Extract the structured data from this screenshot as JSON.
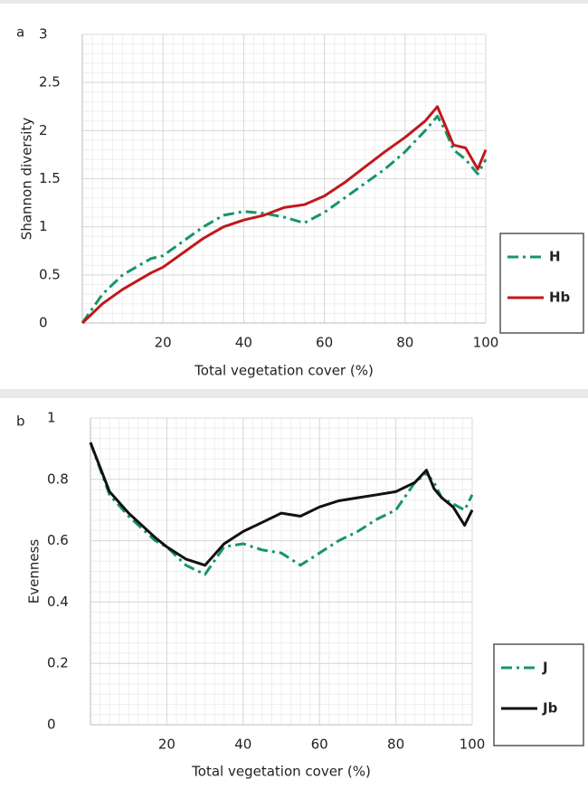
{
  "chart_data": [
    {
      "type": "line",
      "panel": "a",
      "x_label": "Total vegetation cover (%)",
      "y_label": "Shannon diversity",
      "x": [
        0,
        5,
        10,
        17,
        20,
        25,
        30,
        35,
        40,
        45,
        50,
        55,
        60,
        65,
        70,
        75,
        80,
        85,
        88,
        90,
        92,
        95,
        98,
        100
      ],
      "series": [
        {
          "name": "H",
          "color": "#17956a",
          "style": "dash-dot",
          "values": [
            0,
            0.3,
            0.5,
            0.67,
            0.7,
            0.85,
            1.0,
            1.12,
            1.16,
            1.14,
            1.1,
            1.04,
            1.15,
            1.3,
            1.45,
            1.6,
            1.78,
            2.0,
            2.15,
            2.0,
            1.8,
            1.7,
            1.55,
            1.7
          ]
        },
        {
          "name": "Hb",
          "color": "#c0191c",
          "style": "solid",
          "values": [
            0,
            0.2,
            0.35,
            0.52,
            0.58,
            0.73,
            0.88,
            1.0,
            1.07,
            1.12,
            1.2,
            1.23,
            1.32,
            1.46,
            1.62,
            1.78,
            1.93,
            2.1,
            2.25,
            2.05,
            1.85,
            1.82,
            1.6,
            1.8
          ]
        }
      ],
      "xlim": [
        0,
        100
      ],
      "xticks": [
        20,
        40,
        60,
        80,
        100
      ],
      "ylim": [
        0,
        3
      ],
      "yticks": [
        0,
        0.5,
        1,
        1.5,
        2,
        2.5,
        3
      ],
      "grid": true,
      "legend": "right"
    },
    {
      "type": "line",
      "panel": "b",
      "x_label": "Total vegetation cover (%)",
      "y_label": "Evenness",
      "x": [
        0,
        5,
        10,
        17,
        20,
        25,
        30,
        35,
        40,
        45,
        50,
        55,
        60,
        65,
        70,
        75,
        80,
        85,
        88,
        90,
        92,
        95,
        98,
        100
      ],
      "series": [
        {
          "name": "J",
          "color": "#17956a",
          "style": "dash-dot",
          "values": [
            0.92,
            0.75,
            0.68,
            0.6,
            0.58,
            0.52,
            0.49,
            0.58,
            0.59,
            0.57,
            0.56,
            0.52,
            0.56,
            0.6,
            0.63,
            0.67,
            0.7,
            0.79,
            0.82,
            0.79,
            0.74,
            0.72,
            0.7,
            0.75
          ]
        },
        {
          "name": "Jb",
          "color": "#111111",
          "style": "solid",
          "values": [
            0.92,
            0.76,
            0.69,
            0.61,
            0.58,
            0.54,
            0.52,
            0.59,
            0.63,
            0.66,
            0.69,
            0.68,
            0.71,
            0.73,
            0.74,
            0.75,
            0.76,
            0.79,
            0.83,
            0.77,
            0.74,
            0.71,
            0.65,
            0.7
          ]
        }
      ],
      "xlim": [
        0,
        100
      ],
      "xticks": [
        20,
        40,
        60,
        80,
        100
      ],
      "ylim": [
        0,
        1
      ],
      "yticks": [
        0,
        0.2,
        0.4,
        0.6,
        0.8,
        1
      ],
      "grid": true,
      "legend": "right"
    }
  ]
}
